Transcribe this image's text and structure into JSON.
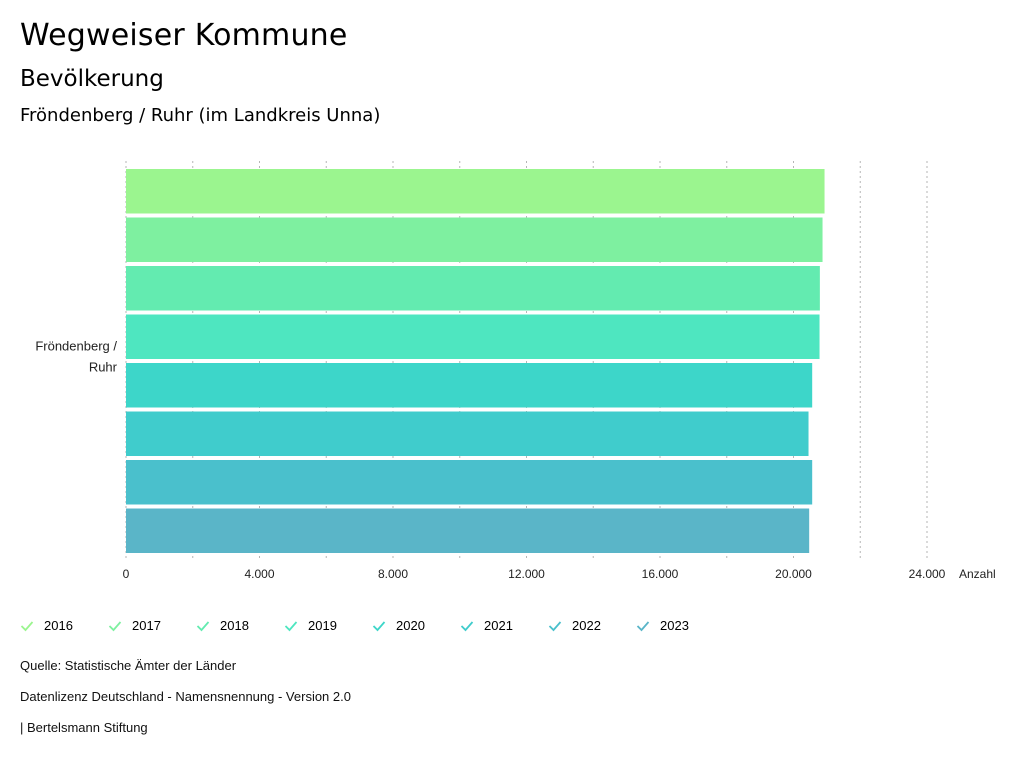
{
  "header": {
    "title": "Wegweiser Kommune",
    "subtitle": "Bevölkerung",
    "region": "Fröndenberg / Ruhr (im Landkreis Unna)"
  },
  "chart_data": {
    "type": "bar",
    "orientation": "horizontal",
    "categories": [
      "Fröndenberg / Ruhr"
    ],
    "category_label_lines": [
      "Fröndenberg /",
      "Ruhr"
    ],
    "series": [
      {
        "name": "2016",
        "values": [
          20930
        ],
        "color": "#9bf58f"
      },
      {
        "name": "2017",
        "values": [
          20870
        ],
        "color": "#7ef0a0"
      },
      {
        "name": "2018",
        "values": [
          20790
        ],
        "color": "#63ebb0"
      },
      {
        "name": "2019",
        "values": [
          20780
        ],
        "color": "#4ee6c0"
      },
      {
        "name": "2020",
        "values": [
          20560
        ],
        "color": "#3dd6c9"
      },
      {
        "name": "2021",
        "values": [
          20450
        ],
        "color": "#40cccc"
      },
      {
        "name": "2022",
        "values": [
          20560
        ],
        "color": "#4ac0cc"
      },
      {
        "name": "2023",
        "values": [
          20470
        ],
        "color": "#5ab5c8"
      }
    ],
    "xlim": [
      0,
      26000
    ],
    "xticks": [
      0,
      4000,
      8000,
      12000,
      16000,
      20000,
      24000
    ],
    "xtick_labels": [
      "0",
      "4.000",
      "8.000",
      "12.000",
      "16.000",
      "20.000",
      "24.000"
    ],
    "xlabel": "Anzahl",
    "grid": true,
    "legend_position": "bottom"
  },
  "legend": {
    "items": [
      "2016",
      "2017",
      "2018",
      "2019",
      "2020",
      "2021",
      "2022",
      "2023"
    ]
  },
  "footer": {
    "source": "Quelle: Statistische Ämter der Länder",
    "license": "Datenlizenz Deutschland - Namensnennung - Version 2.0",
    "publisher": "| Bertelsmann Stiftung"
  }
}
